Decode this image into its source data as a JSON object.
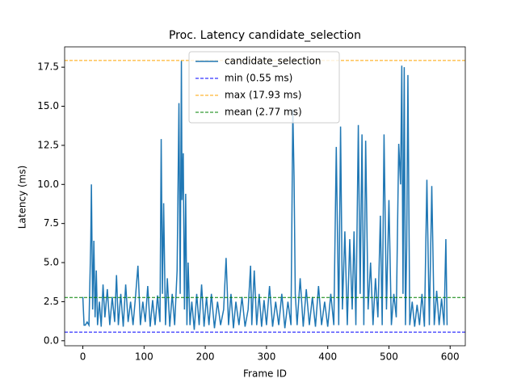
{
  "chart_data": {
    "type": "line",
    "title": "Proc. Latency candidate_selection",
    "xlabel": "Frame ID",
    "ylabel": "Latency (ms)",
    "x": [
      0,
      2,
      4,
      7,
      10,
      13,
      14,
      16,
      18,
      20,
      22,
      24,
      27,
      30,
      33,
      36,
      40,
      44,
      48,
      52,
      55,
      58,
      62,
      66,
      70,
      74,
      78,
      82,
      86,
      90,
      94,
      98,
      102,
      106,
      110,
      114,
      118,
      122,
      126,
      128,
      130,
      132,
      135,
      138,
      142,
      146,
      150,
      154,
      157,
      159,
      161,
      162,
      164,
      166,
      168,
      170,
      172,
      175,
      178,
      182,
      186,
      190,
      194,
      198,
      202,
      206,
      210,
      215,
      220,
      225,
      230,
      234,
      238,
      242,
      246,
      250,
      255,
      260,
      265,
      270,
      274,
      276,
      280,
      284,
      288,
      292,
      296,
      300,
      305,
      310,
      315,
      320,
      325,
      330,
      335,
      340,
      343,
      345,
      347,
      350,
      355,
      360,
      365,
      370,
      375,
      380,
      385,
      390,
      395,
      400,
      405,
      410,
      414,
      418,
      421,
      424,
      428,
      432,
      436,
      440,
      443,
      446,
      450,
      453,
      456,
      459,
      462,
      466,
      470,
      474,
      478,
      482,
      486,
      489,
      492,
      496,
      500,
      504,
      508,
      512,
      516,
      519,
      521,
      523,
      525,
      527,
      529,
      531,
      534,
      538,
      542,
      546,
      550,
      554,
      558,
      562,
      566,
      570,
      574,
      578,
      582,
      586,
      590,
      593,
      595
    ],
    "series": [
      {
        "name": "candidate_selection",
        "color": "#1f77b4",
        "values": [
          2.8,
          1.0,
          1.0,
          1.2,
          1.0,
          6.5,
          10.0,
          2.0,
          6.4,
          1.5,
          4.5,
          1.0,
          2.5,
          0.9,
          3.6,
          1.5,
          3.3,
          1.0,
          2.8,
          1.2,
          4.2,
          1.0,
          3.0,
          0.9,
          3.6,
          1.2,
          2.5,
          1.0,
          2.8,
          4.8,
          1.0,
          2.5,
          1.2,
          3.5,
          0.9,
          2.6,
          1.0,
          2.9,
          1.2,
          12.9,
          3.0,
          8.8,
          1.0,
          4.0,
          0.9,
          3.0,
          1.0,
          4.5,
          15.2,
          3.0,
          17.9,
          9.0,
          12.0,
          2.0,
          9.4,
          1.0,
          5.0,
          1.0,
          2.5,
          0.7,
          3.0,
          1.0,
          3.6,
          0.9,
          2.8,
          1.0,
          3.0,
          0.8,
          2.5,
          1.0,
          2.0,
          5.3,
          1.0,
          3.0,
          0.8,
          2.5,
          1.0,
          2.8,
          0.9,
          2.0,
          4.8,
          1.0,
          4.5,
          1.0,
          3.0,
          0.9,
          2.6,
          1.0,
          3.5,
          0.9,
          2.5,
          1.0,
          3.0,
          0.8,
          2.5,
          1.0,
          14.8,
          10.5,
          3.0,
          1.0,
          4.0,
          0.9,
          3.3,
          1.0,
          2.8,
          0.9,
          3.5,
          1.0,
          2.5,
          0.9,
          3.0,
          1.0,
          12.4,
          1.0,
          13.7,
          2.0,
          7.0,
          1.0,
          6.5,
          2.0,
          7.0,
          1.0,
          13.8,
          3.0,
          13.2,
          1.0,
          12.8,
          2.0,
          5.0,
          1.0,
          4.0,
          1.5,
          8.0,
          1.0,
          13.2,
          2.0,
          9.0,
          1.0,
          3.0,
          1.5,
          12.6,
          10.0,
          17.6,
          3.0,
          17.5,
          1.0,
          6.0,
          17.0,
          1.0,
          2.5,
          0.9,
          2.3,
          1.0,
          3.0,
          0.9,
          10.3,
          1.0,
          9.9,
          1.0,
          3.2,
          1.0,
          2.7,
          1.0,
          6.5,
          1.0
        ]
      }
    ],
    "reference_lines": [
      {
        "name": "min (0.55 ms)",
        "value": 0.55,
        "color": "blue"
      },
      {
        "name": "max (17.93 ms)",
        "value": 17.93,
        "color": "orange"
      },
      {
        "name": "mean (2.77 ms)",
        "value": 2.77,
        "color": "green"
      }
    ],
    "xlim": [
      -29.75,
      624.75
    ],
    "ylim": [
      -0.32,
      18.8
    ],
    "xticks": [
      0,
      100,
      200,
      300,
      400,
      500,
      600
    ],
    "yticks": [
      {
        "value": 0,
        "label": "0.0"
      },
      2.5,
      {
        "value": 5,
        "label": "5.0"
      },
      7.5,
      {
        "value": 10,
        "label": "10.0"
      },
      12.5,
      {
        "value": 15,
        "label": "15.0"
      },
      17.5
    ],
    "legend": "upper center"
  }
}
